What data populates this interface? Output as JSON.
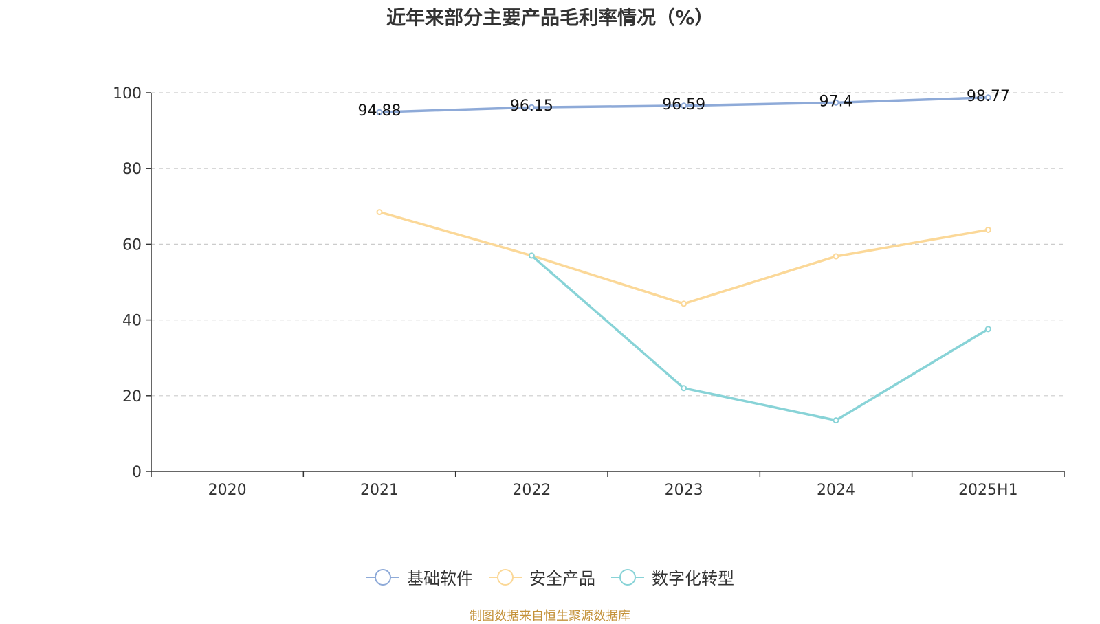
{
  "title": "近年来部分主要产品毛利率情况（%）",
  "source": "制图数据来自恒生聚源数据库",
  "chart_data": {
    "type": "line",
    "categories": [
      "2020",
      "2021",
      "2022",
      "2023",
      "2024",
      "2025H1"
    ],
    "ylim": [
      0,
      100
    ],
    "yticks": [
      0,
      20,
      40,
      60,
      80,
      100
    ],
    "grid": true,
    "legend_position": "bottom",
    "series": [
      {
        "name": "基础软件",
        "color": "#8eaad8",
        "values": [
          null,
          94.88,
          96.15,
          96.59,
          97.4,
          98.77
        ],
        "labels": [
          "",
          "94.88",
          "96.15",
          "96.59",
          "97.4",
          "98.77"
        ]
      },
      {
        "name": "安全产品",
        "color": "#fbd898",
        "values": [
          null,
          68.5,
          57.0,
          44.3,
          56.8,
          63.8
        ]
      },
      {
        "name": "数字化转型",
        "color": "#88d3d7",
        "values": [
          null,
          null,
          57.0,
          22.0,
          13.5,
          37.6
        ]
      }
    ]
  }
}
